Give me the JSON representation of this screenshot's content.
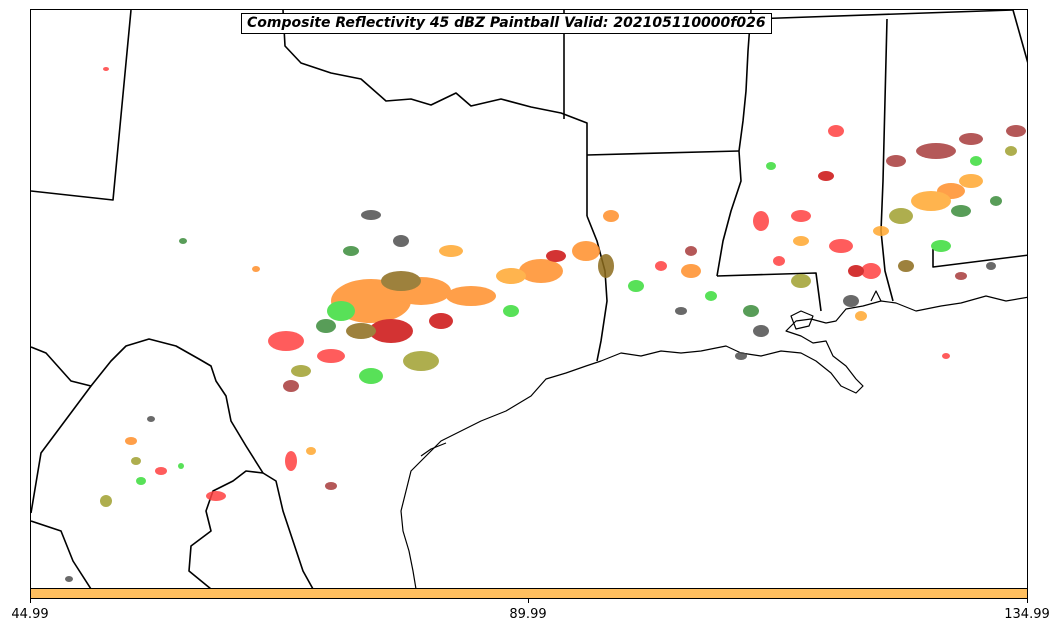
{
  "title": "Composite Reflectivity 45 dBZ Paintball Valid: 202105110000f026",
  "colorbar": {
    "color": "#ffbf5f",
    "ticks": [
      "44.99",
      "89.99",
      "134.99"
    ]
  },
  "member_colors": [
    "#ff4040",
    "#ff8f2a",
    "#ffa830",
    "#3cdc3c",
    "#a0a030",
    "#8b8b2a",
    "#a83c3c",
    "#cc1010",
    "#505050",
    "#3c8c3c",
    "#8c6c1c"
  ],
  "features": [
    "state-boundaries",
    "coastline",
    "reflectivity-paintballs"
  ]
}
